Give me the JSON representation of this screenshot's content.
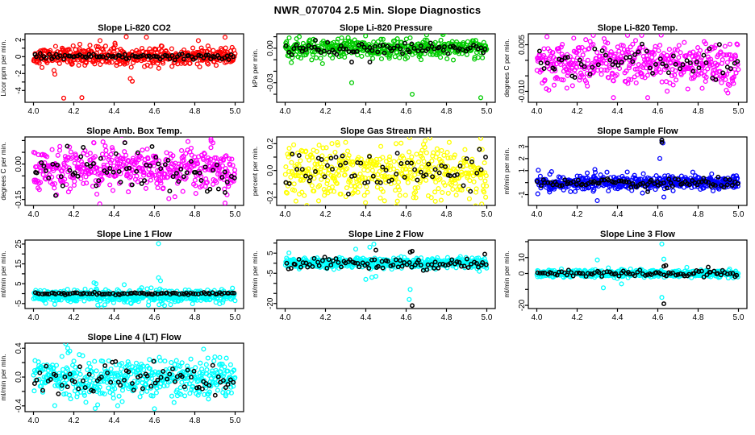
{
  "page_title": "NWR_070704  2.5 Min. Slope Diagnostics",
  "palette": {
    "axis": "#000000",
    "background": "#ffffff",
    "overlay_points": "#000000"
  },
  "x_axis": {
    "ticks": [
      4.0,
      4.2,
      4.4,
      4.6,
      4.8,
      5.0
    ],
    "tick_labels": [
      "4.0",
      "4.2",
      "4.4",
      "4.6",
      "4.8",
      "5.0"
    ],
    "xlim": [
      3.958,
      5.042
    ]
  },
  "chart_data": [
    {
      "type": "scatter",
      "name": "slope-li-820-co2",
      "title": "Slope Li-820 CO2",
      "ylabel": "Licor ppm per min.",
      "color": "#ff0000",
      "ylim": [
        -5.4,
        2.7
      ],
      "seed": 11,
      "yticks": [
        {
          "v": 2,
          "label": "2"
        },
        {
          "v": 1,
          "label": ""
        },
        {
          "v": 0,
          "label": "0"
        },
        {
          "v": -1,
          "label": ""
        },
        {
          "v": -2,
          "label": "-2"
        },
        {
          "v": -3,
          "label": ""
        },
        {
          "v": -4,
          "label": "-4"
        }
      ],
      "series": [
        {
          "name": "slope-samples",
          "color": "#ff0000",
          "n": 440,
          "mean": 0.0,
          "sd": 0.55,
          "outliers": [
            [
              4.15,
              -4.9
            ],
            [
              4.24,
              -4.85
            ],
            [
              4.46,
              2.35
            ],
            [
              4.56,
              2.3
            ],
            [
              4.33,
              1.9
            ],
            [
              4.95,
              2.3
            ],
            [
              4.48,
              -2.6
            ],
            [
              4.49,
              -2.9
            ]
          ]
        },
        {
          "name": "slope-means",
          "color": "#000000",
          "n": 85,
          "mean": 0.0,
          "sd": 0.17,
          "outliers": []
        }
      ]
    },
    {
      "type": "scatter",
      "name": "slope-li-820-pressure",
      "title": "Slope Li-820 Pressure",
      "ylabel": "kPa per min.",
      "color": "#00cc00",
      "ylim": [
        -0.047,
        0.0125
      ],
      "seed": 22,
      "yticks": [
        {
          "v": 0.01,
          "label": ""
        },
        {
          "v": 0,
          "label": "0.00"
        },
        {
          "v": -0.01,
          "label": ""
        },
        {
          "v": -0.02,
          "label": ""
        },
        {
          "v": -0.03,
          "label": "-0.03"
        },
        {
          "v": -0.04,
          "label": ""
        }
      ],
      "series": [
        {
          "name": "slope-samples",
          "color": "#00cc00",
          "n": 430,
          "mean": 0.0,
          "sd": 0.004,
          "outliers": [
            [
              4.33,
              -0.03
            ],
            [
              4.63,
              -0.04
            ],
            [
              4.97,
              -0.043
            ],
            [
              4.07,
              0.01
            ],
            [
              4.28,
              0.009
            ],
            [
              4.62,
              0.009
            ],
            [
              4.02,
              0.009
            ]
          ]
        },
        {
          "name": "slope-means",
          "color": "#000000",
          "n": 80,
          "mean": 0.0,
          "sd": 0.0022,
          "outliers": [
            [
              4.33,
              -0.012
            ],
            [
              4.42,
              -0.012
            ],
            [
              4.15,
              0.007
            ]
          ]
        }
      ]
    },
    {
      "type": "scatter",
      "name": "slope-li-820-temp",
      "title": "Slope Li-820 Temp.",
      "ylabel": "degrees C per min.",
      "color": "#ff00ff",
      "ylim": [
        -0.0135,
        0.0085
      ],
      "seed": 33,
      "yticks": [
        {
          "v": 0.005,
          "label": "0.005"
        },
        {
          "v": 0,
          "label": ""
        },
        {
          "v": -0.005,
          "label": ""
        },
        {
          "v": -0.01,
          "label": "-0.010"
        }
      ],
      "series": [
        {
          "name": "slope-samples",
          "color": "#ff00ff",
          "n": 460,
          "mean": -0.0012,
          "sd": 0.0036,
          "outliers": [
            [
              4.28,
              0.008
            ],
            [
              4.45,
              0.008
            ],
            [
              4.52,
              0.008
            ],
            [
              4.38,
              -0.012
            ],
            [
              4.55,
              -0.012
            ],
            [
              4.82,
              -0.009
            ]
          ]
        },
        {
          "name": "slope-means",
          "color": "#000000",
          "n": 60,
          "mean": -0.0005,
          "sd": 0.0025,
          "outliers": []
        }
      ]
    },
    {
      "type": "scatter",
      "name": "slope-amb-box-temp",
      "title": "Slope Amb. Box Temp.",
      "ylabel": "degrees C per min.",
      "color": "#ff00ff",
      "ylim": [
        -0.175,
        0.115
      ],
      "seed": 44,
      "yticks": [
        {
          "v": 0.1,
          "label": ""
        },
        {
          "v": 0.05,
          "label": ""
        },
        {
          "v": 0,
          "label": "0.00"
        },
        {
          "v": -0.05,
          "label": ""
        },
        {
          "v": -0.1,
          "label": ""
        },
        {
          "v": -0.15,
          "label": "-0.15"
        }
      ],
      "series": [
        {
          "name": "slope-samples",
          "color": "#ff00ff",
          "n": 460,
          "mean": -0.025,
          "sd": 0.045,
          "outliers": [
            [
              4.88,
              0.105
            ],
            [
              4.89,
              0.09
            ],
            [
              4.88,
              0.07
            ],
            [
              4.95,
              -0.165
            ],
            [
              4.96,
              -0.13
            ],
            [
              4.3,
              0.09
            ]
          ]
        },
        {
          "name": "slope-means",
          "color": "#000000",
          "n": 70,
          "mean": -0.02,
          "sd": 0.045,
          "outliers": [
            [
              4.95,
              -0.12
            ]
          ]
        }
      ]
    },
    {
      "type": "scatter",
      "name": "slope-gas-stream-rh",
      "title": "Slope Gas Stream RH",
      "ylabel": "percent per min.",
      "color": "#ffff00",
      "ylim": [
        -0.26,
        0.25
      ],
      "seed": 55,
      "yticks": [
        {
          "v": 0.2,
          "label": "0.2"
        },
        {
          "v": 0.1,
          "label": ""
        },
        {
          "v": 0,
          "label": "0.0"
        },
        {
          "v": -0.1,
          "label": ""
        },
        {
          "v": -0.2,
          "label": "-0.2"
        }
      ],
      "series": [
        {
          "name": "slope-samples",
          "color": "#ffff00",
          "n": 460,
          "mean": -0.015,
          "sd": 0.1,
          "outliers": [
            [
              4.97,
              0.24
            ],
            [
              4.3,
              0.21
            ],
            [
              4.55,
              0.2
            ]
          ]
        },
        {
          "name": "slope-means",
          "color": "#000000",
          "n": 65,
          "mean": -0.01,
          "sd": 0.08,
          "outliers": []
        }
      ]
    },
    {
      "type": "scatter",
      "name": "slope-sample-flow",
      "title": "Slope Sample Flow",
      "ylabel": "ml/min per min.",
      "color": "#0000ff",
      "ylim": [
        -1.9,
        3.8
      ],
      "seed": 66,
      "yticks": [
        {
          "v": 3,
          "label": "3"
        },
        {
          "v": 2,
          "label": "2"
        },
        {
          "v": 1,
          "label": "1"
        },
        {
          "v": 0,
          "label": ""
        },
        {
          "v": -1,
          "label": "-1"
        }
      ],
      "series": [
        {
          "name": "slope-samples",
          "color": "#0000ff",
          "n": 470,
          "mean": 0.0,
          "sd": 0.3,
          "outliers": [
            [
              4.62,
              3.5
            ],
            [
              4.625,
              3.3
            ],
            [
              4.61,
              2.0
            ],
            [
              4.63,
              -1.2
            ],
            [
              4.3,
              -1.5
            ],
            [
              4.29,
              0.85
            ],
            [
              4.25,
              0.8
            ]
          ]
        },
        {
          "name": "slope-means",
          "color": "#000000",
          "n": 85,
          "mean": -0.05,
          "sd": 0.2,
          "outliers": [
            [
              4.62,
              3.55
            ],
            [
              4.62,
              3.35
            ],
            [
              4.55,
              -0.75
            ]
          ]
        }
      ]
    },
    {
      "type": "scatter",
      "name": "slope-line-1-flow",
      "title": "Slope Line 1 Flow",
      "ylabel": "ml/min per min.",
      "color": "#00ffff",
      "ylim": [
        -7.5,
        27
      ],
      "seed": 77,
      "yticks": [
        {
          "v": 25,
          "label": "25"
        },
        {
          "v": 20,
          "label": ""
        },
        {
          "v": 15,
          "label": "15"
        },
        {
          "v": 10,
          "label": ""
        },
        {
          "v": 5,
          "label": "5"
        },
        {
          "v": 0,
          "label": ""
        },
        {
          "v": -5,
          "label": "-5"
        }
      ],
      "series": [
        {
          "name": "slope-samples",
          "color": "#00ffff",
          "n": 470,
          "mean": -1.2,
          "sd": 1.6,
          "outliers": [
            [
              4.62,
              25.2
            ],
            [
              4.62,
              8.0
            ],
            [
              4.63,
              6.5
            ],
            [
              4.3,
              5.5
            ],
            [
              4.31,
              5.0
            ],
            [
              4.45,
              4.5
            ],
            [
              4.57,
              -5.8
            ],
            [
              4.65,
              -6.0
            ],
            [
              4.68,
              -5.5
            ]
          ]
        },
        {
          "name": "slope-means",
          "color": "#000000",
          "n": 85,
          "mean": 0.0,
          "sd": 0.3,
          "outliers": []
        }
      ]
    },
    {
      "type": "scatter",
      "name": "slope-line-2-flow",
      "title": "Slope Line 2 Flow",
      "ylabel": "ml/min per min.",
      "color": "#00ffff",
      "ylim": [
        -22.5,
        11.5
      ],
      "seed": 88,
      "yticks": [
        {
          "v": 10,
          "label": ""
        },
        {
          "v": 5,
          "label": "5"
        },
        {
          "v": 0,
          "label": ""
        },
        {
          "v": -5,
          "label": "-5"
        },
        {
          "v": -10,
          "label": ""
        },
        {
          "v": -15,
          "label": ""
        },
        {
          "v": -20,
          "label": "-20"
        }
      ],
      "series": [
        {
          "name": "slope-samples",
          "color": "#00ffff",
          "n": 470,
          "mean": 0.0,
          "sd": 1.3,
          "outliers": [
            [
              4.62,
              -13
            ],
            [
              4.615,
              -18
            ],
            [
              4.44,
              9.5
            ],
            [
              4.42,
              8
            ],
            [
              4.35,
              7
            ],
            [
              4.43,
              -7
            ],
            [
              4.4,
              -8
            ],
            [
              4.45,
              -6.5
            ]
          ]
        },
        {
          "name": "slope-means",
          "color": "#000000",
          "n": 85,
          "mean": -0.3,
          "sd": 1.6,
          "outliers": [
            [
              4.63,
              -21
            ],
            [
              4.45,
              6.5
            ],
            [
              4.63,
              6
            ],
            [
              4.62,
              5.5
            ],
            [
              4.99,
              4.5
            ]
          ]
        }
      ]
    },
    {
      "type": "scatter",
      "name": "slope-line-3-flow",
      "title": "Slope Line 3 Flow",
      "ylabel": "ml/min per min.",
      "color": "#00ffff",
      "ylim": [
        -22,
        21
      ],
      "seed": 99,
      "yticks": [
        {
          "v": 20,
          "label": ""
        },
        {
          "v": 10,
          "label": "10"
        },
        {
          "v": 0,
          "label": "0"
        },
        {
          "v": -10,
          "label": ""
        },
        {
          "v": -20,
          "label": "-20"
        }
      ],
      "series": [
        {
          "name": "slope-samples",
          "color": "#00ffff",
          "n": 470,
          "mean": 0.0,
          "sd": 1.2,
          "outliers": [
            [
              4.62,
              18.5
            ],
            [
              4.62,
              -15
            ],
            [
              4.63,
              9
            ],
            [
              4.3,
              8.5
            ],
            [
              4.33,
              -9
            ],
            [
              4.42,
              -6.5
            ]
          ]
        },
        {
          "name": "slope-means",
          "color": "#000000",
          "n": 85,
          "mean": 0.0,
          "sd": 1.0,
          "outliers": [
            [
              4.63,
              -19
            ],
            [
              4.63,
              4.5
            ],
            [
              4.64,
              5
            ],
            [
              4.85,
              4
            ]
          ]
        }
      ]
    },
    {
      "type": "scatter",
      "name": "slope-line-4-lt-flow",
      "title": "Slope Line 4 (LT) Flow",
      "ylabel": "ml/min per min.",
      "color": "#00ffff",
      "ylim": [
        -0.48,
        0.47
      ],
      "seed": 110,
      "yticks": [
        {
          "v": 0.4,
          "label": "0.4"
        },
        {
          "v": 0.2,
          "label": ""
        },
        {
          "v": 0,
          "label": "0.0"
        },
        {
          "v": -0.2,
          "label": ""
        },
        {
          "v": -0.4,
          "label": "-0.4"
        }
      ],
      "series": [
        {
          "name": "slope-samples",
          "color": "#00ffff",
          "n": 470,
          "mean": -0.02,
          "sd": 0.14,
          "outliers": [
            [
              4.16,
              0.46
            ],
            [
              4.17,
              0.4
            ],
            [
              4.18,
              0.36
            ],
            [
              4.6,
              -0.44
            ],
            [
              4.26,
              -0.35
            ],
            [
              4.44,
              -0.34
            ]
          ]
        },
        {
          "name": "slope-means",
          "color": "#000000",
          "n": 75,
          "mean": -0.05,
          "sd": 0.11,
          "outliers": []
        }
      ]
    }
  ]
}
